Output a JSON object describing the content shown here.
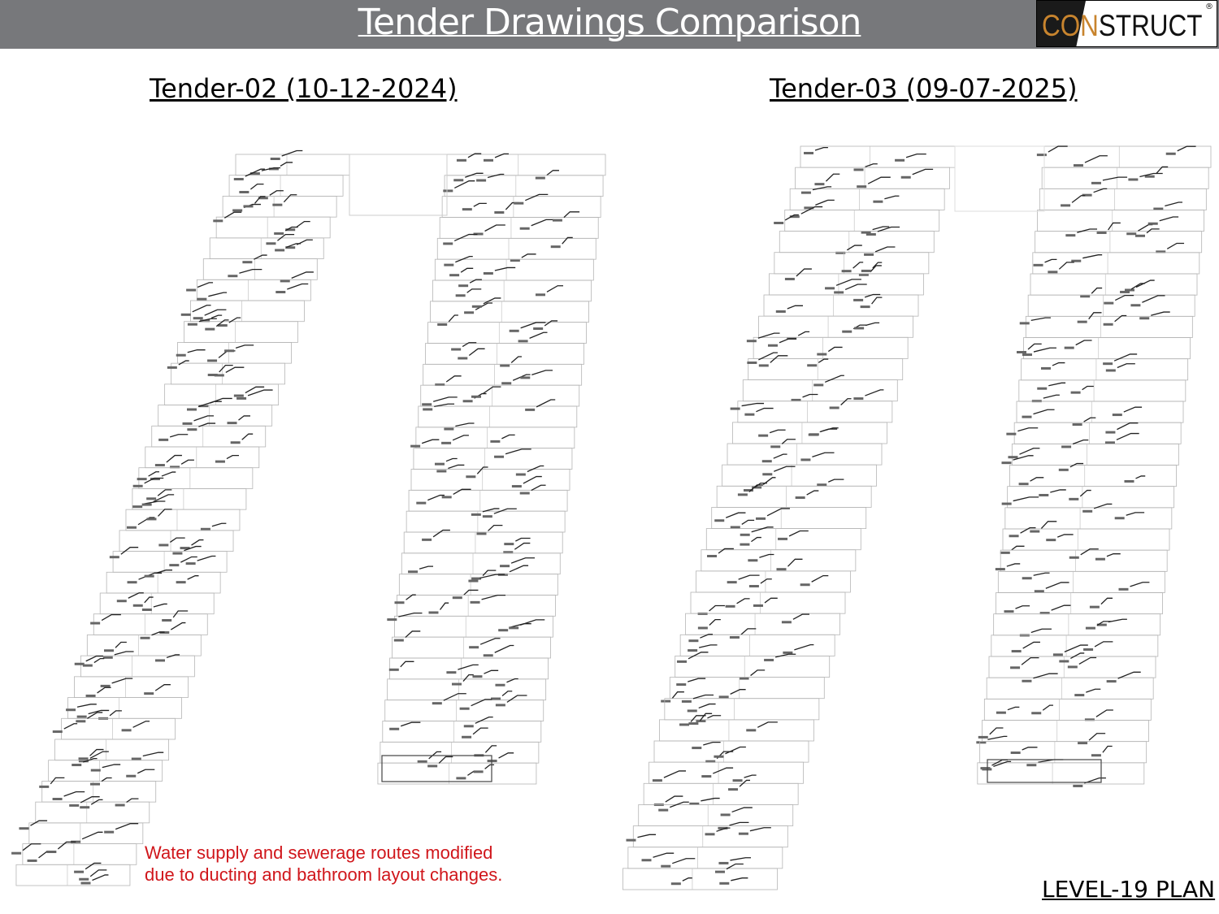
{
  "header": {
    "title": "Tender Drawings Comparison"
  },
  "logo": {
    "prefix": "CON",
    "suffix": "STRUCT",
    "mark": "®"
  },
  "panels": [
    {
      "title": "Tender-02 (10-12-2024)"
    },
    {
      "title": "Tender-03 (09-07-2025)"
    }
  ],
  "note": {
    "lines": [
      "Water supply and sewerage routes modified",
      "due to ducting and bathroom layout changes."
    ]
  },
  "footer": {
    "label": "LEVEL-19 PLAN"
  }
}
